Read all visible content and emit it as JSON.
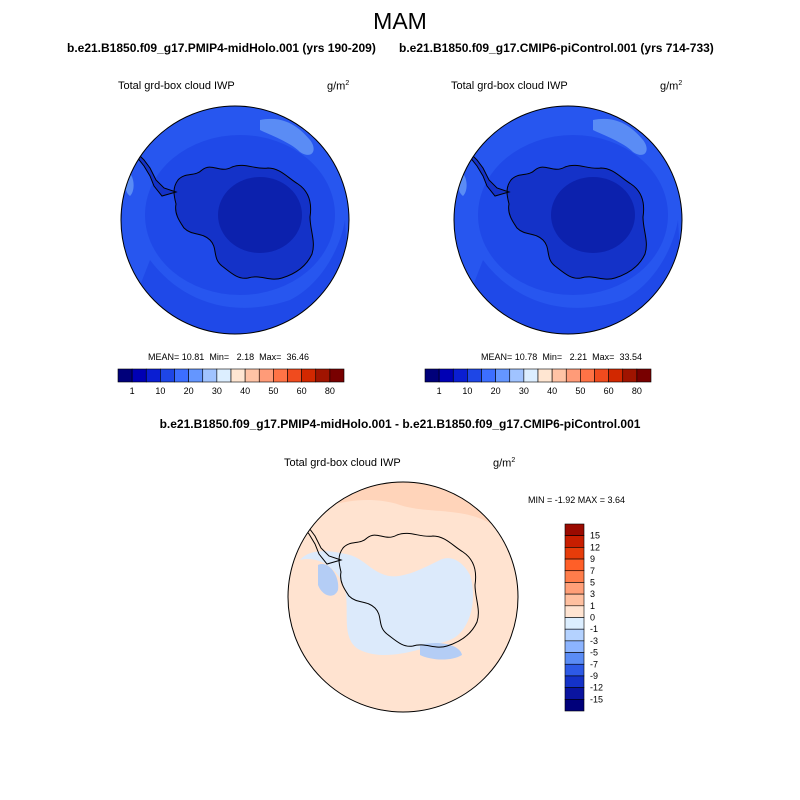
{
  "season": "MAM",
  "panels": {
    "left": {
      "run_title": "b.e21.B1850.f09_g17.PMIP4-midHolo.001 (yrs 190-209)",
      "variable": "Total grd-box cloud IWP",
      "units_base": "g/m",
      "units_exp": "2",
      "stats": {
        "mean_label": "MEAN=",
        "mean": "10.81",
        "min_label": "Min=",
        "min": "2.18",
        "max_label": "Max=",
        "max": "36.46"
      }
    },
    "right": {
      "run_title": "b.e21.B1850.f09_g17.CMIP6-piControl.001 (yrs 714-733)",
      "variable": "Total grd-box cloud IWP",
      "units_base": "g/m",
      "units_exp": "2",
      "stats": {
        "mean_label": "MEAN=",
        "mean": "10.78",
        "min_label": "Min=",
        "min": "2.21",
        "max_label": "Max=",
        "max": "33.54"
      }
    },
    "diff": {
      "title": "b.e21.B1850.f09_g17.PMIP4-midHolo.001 - b.e21.B1850.f09_g17.CMIP6-piControl.001",
      "variable": "Total grd-box cloud IWP",
      "units_base": "g/m",
      "units_exp": "2",
      "minmax": "MIN =  -1.92 MAX =   3.64"
    }
  },
  "abs_colorbar": {
    "labels": [
      "1",
      "10",
      "20",
      "30",
      "40",
      "50",
      "60",
      "80"
    ],
    "colors": [
      "#00007a",
      "#0000b4",
      "#0a1ed2",
      "#1e46e6",
      "#3c6eff",
      "#6496ff",
      "#a0c3ff",
      "#dceeff",
      "#ffe6d2",
      "#ffc3a5",
      "#ff9b78",
      "#ff7346",
      "#f04b1e",
      "#d22800",
      "#a01400",
      "#780000"
    ]
  },
  "diff_colorbar": {
    "labels": [
      "15",
      "12",
      "9",
      "7",
      "5",
      "3",
      "1",
      "0",
      "-1",
      "-3",
      "-5",
      "-7",
      "-9",
      "-12",
      "-15"
    ],
    "colors": [
      "#9b0a00",
      "#c81e00",
      "#e63c0a",
      "#ff5f28",
      "#ff7d4b",
      "#ff9f78",
      "#ffc0a0",
      "#ffe4d2",
      "#dceeff",
      "#b4d2ff",
      "#8cb4ff",
      "#5a8cf5",
      "#2d5ae6",
      "#1432c8",
      "#0a14a0",
      "#00007a"
    ]
  },
  "map_palette": {
    "ocean_abs": "#2756ef",
    "ocean_abs_dark": "#1e46e6",
    "continent_abs": "#1432c8",
    "interior_abs": "#0a1ea8",
    "light_patch_abs": "#5a8cf5",
    "diff_pos": "#ffe3d0",
    "diff_pos_strong": "#ffcdb0",
    "diff_neg": "#dceafb",
    "diff_neg_strong": "#b4cdf5"
  }
}
